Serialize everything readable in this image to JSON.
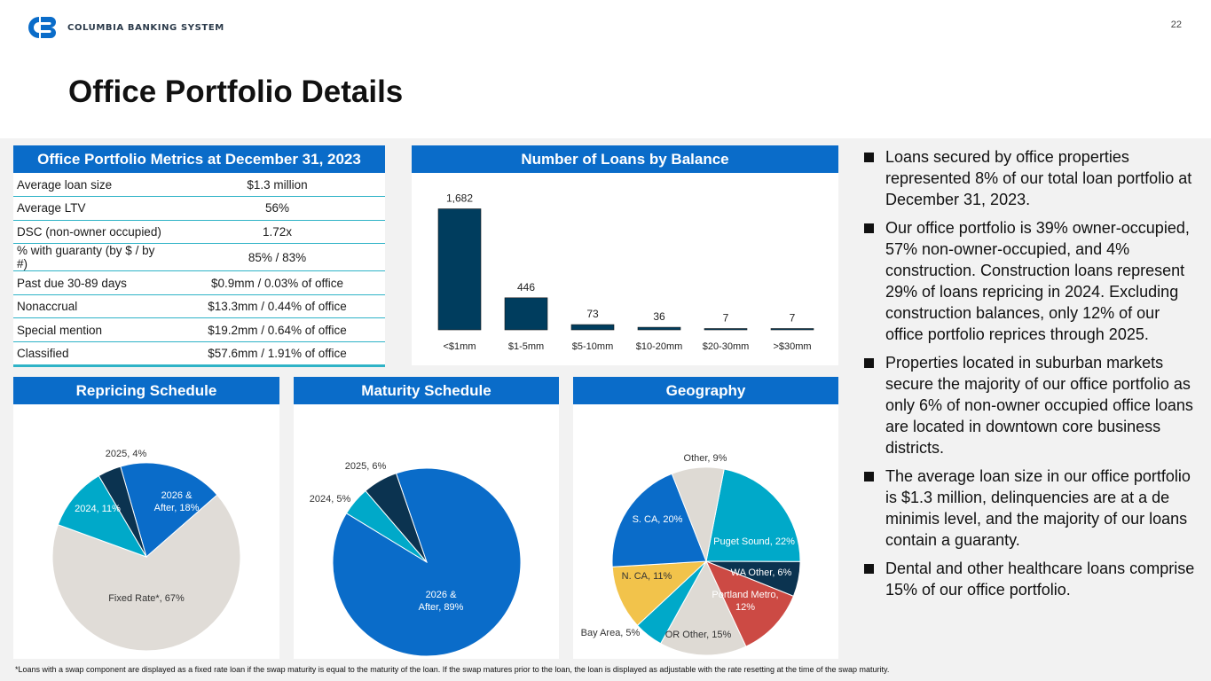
{
  "header": {
    "company": "COLUMBIA BANKING SYSTEM",
    "page_number": "22",
    "title": "Office Portfolio Details"
  },
  "metrics": {
    "heading": "Office Portfolio Metrics at December 31, 2023",
    "rows": [
      {
        "label": "Average loan size",
        "value": "$1.3 million"
      },
      {
        "label": "Average LTV",
        "value": "56%"
      },
      {
        "label": "DSC (non-owner occupied)",
        "value": "1.72x"
      },
      {
        "label": "% with guaranty (by $ / by #)",
        "value": "85% / 83%"
      },
      {
        "label": "Past due 30-89 days",
        "value": "$0.9mm / 0.03% of office"
      },
      {
        "label": "Nonaccrual",
        "value": "$13.3mm / 0.44% of office"
      },
      {
        "label": "Special mention",
        "value": "$19.2mm / 0.64% of office"
      },
      {
        "label": "Classified",
        "value": "$57.6mm / 1.91% of office"
      }
    ]
  },
  "colors": {
    "brand_blue": "#0a6cc9",
    "bar_navy": "#003d5e",
    "teal": "#00a9c9",
    "beige": "#dedad4",
    "dark_navy": "#0b3350",
    "yellow": "#f2c34b",
    "red": "#cc4a44"
  },
  "chart_data": [
    {
      "type": "bar",
      "title": "Number of Loans by Balance",
      "categories": [
        "<$1mm",
        "$1-5mm",
        "$5-10mm",
        "$10-20mm",
        "$20-30mm",
        ">$30mm"
      ],
      "values": [
        1682,
        446,
        73,
        36,
        7,
        7
      ],
      "data_labels": [
        "1,682",
        "446",
        "73",
        "36",
        "7",
        "7"
      ],
      "ylim": [
        0,
        1750
      ]
    },
    {
      "type": "pie",
      "title": "Repricing Schedule",
      "slices": [
        {
          "label": "2026 & After, 18%",
          "value": 18,
          "color": "#0a6cc9"
        },
        {
          "label": "Fixed Rate*, 67%",
          "value": 67,
          "color": "#e0dcd7"
        },
        {
          "label": "2024, 11%",
          "value": 11,
          "color": "#00a9c9"
        },
        {
          "label": "2025, 4%",
          "value": 4,
          "color": "#0b3350"
        }
      ]
    },
    {
      "type": "pie",
      "title": "Maturity Schedule",
      "slices": [
        {
          "label": "2026 & After, 89%",
          "value": 89,
          "color": "#0a6cc9"
        },
        {
          "label": "2024, 5%",
          "value": 5,
          "color": "#00a9c9"
        },
        {
          "label": "2025, 6%",
          "value": 6,
          "color": "#0b3350"
        }
      ]
    },
    {
      "type": "pie",
      "title": "Geography",
      "slices": [
        {
          "label": "Puget Sound, 22%",
          "value": 22,
          "color": "#00a9c9"
        },
        {
          "label": "WA Other, 6%",
          "value": 6,
          "color": "#0b3350"
        },
        {
          "label": "Portland Metro, 12%",
          "value": 12,
          "color": "#cc4a44"
        },
        {
          "label": "OR Other, 15%",
          "value": 15,
          "color": "#dedad4"
        },
        {
          "label": "Bay Area, 5%",
          "value": 5,
          "color": "#00a9c9"
        },
        {
          "label": "N. CA, 11%",
          "value": 11,
          "color": "#f2c34b"
        },
        {
          "label": "S. CA, 20%",
          "value": 20,
          "color": "#0a6cc9"
        },
        {
          "label": "Other, 9%",
          "value": 9,
          "color": "#dedad4"
        }
      ]
    }
  ],
  "bullets": [
    "Loans secured by office properties represented 8% of our total loan portfolio at December 31, 2023.",
    "Our office portfolio is 39% owner-occupied, 57% non-owner-occupied, and 4% construction. Construction loans represent 29% of loans repricing in 2024. Excluding construction balances, only 12% of our office portfolio reprices through 2025.",
    "Properties located in suburban markets secure the majority of our office portfolio as only 6% of non-owner occupied office loans are located in downtown core business districts.",
    "The average loan size in our office portfolio is $1.3 million, delinquencies are at a de minimis level, and the majority of our loans contain a guaranty.",
    "Dental and other healthcare loans comprise 15% of our office portfolio."
  ],
  "footnote": "*Loans with a swap component are displayed as a fixed rate loan if the swap maturity is equal to the maturity of the loan. If the swap matures prior to the loan, the loan is displayed as adjustable with the rate resetting at the time of the swap maturity."
}
